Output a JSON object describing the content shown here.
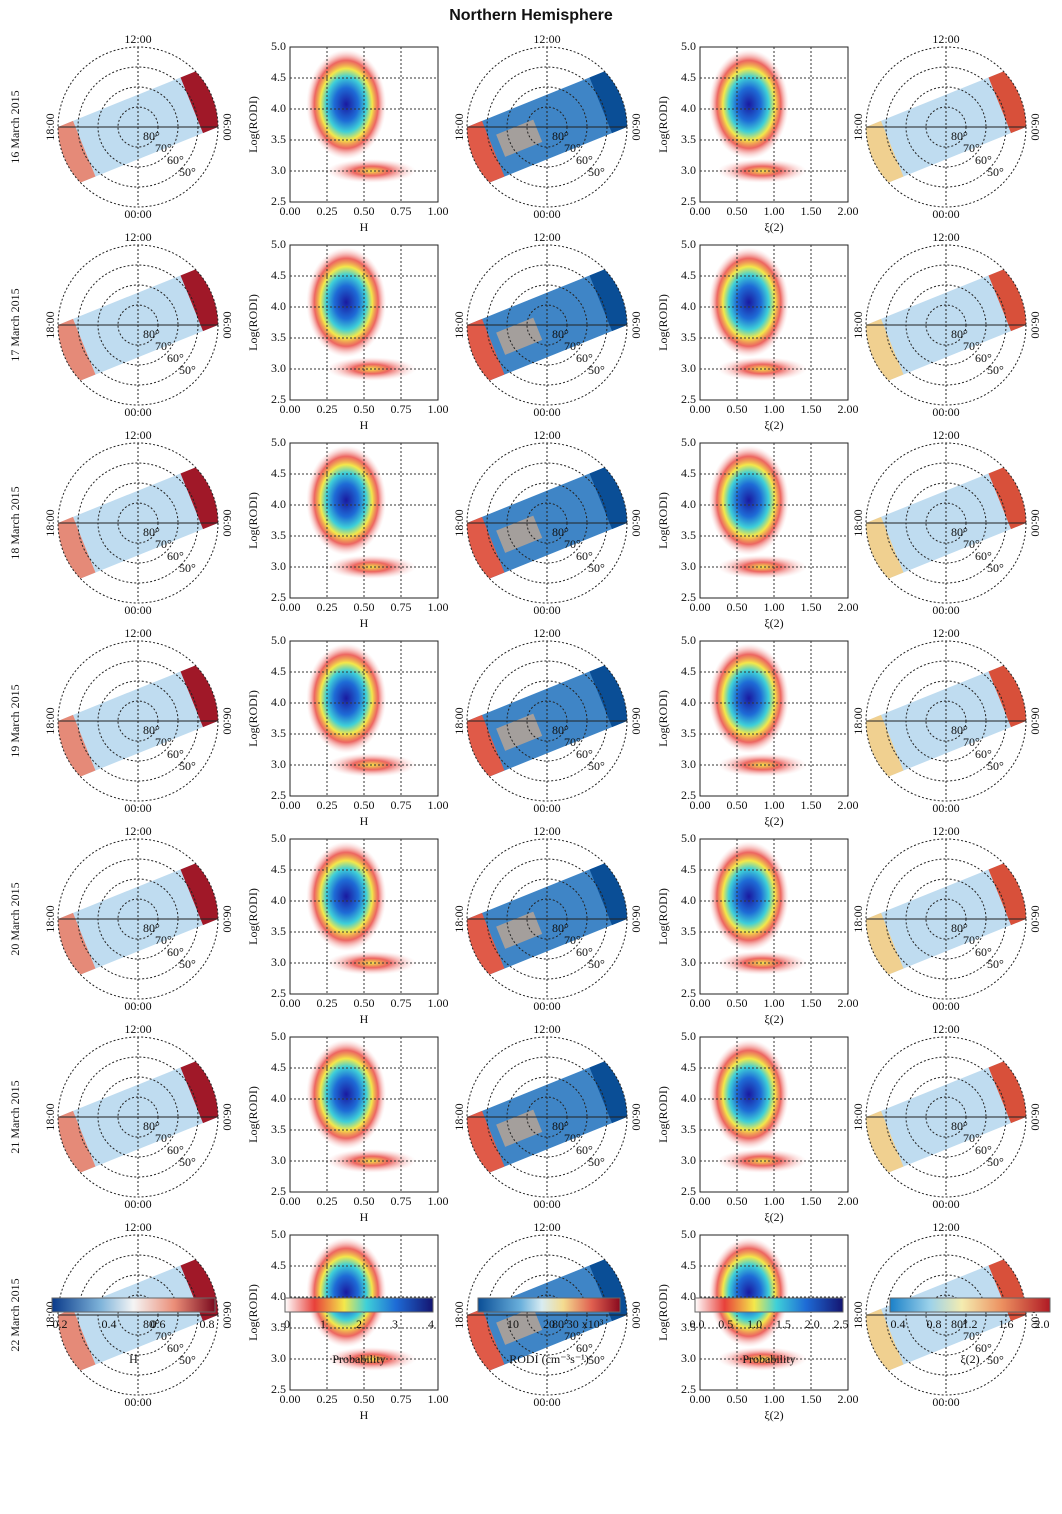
{
  "title": "Northern Hemisphere",
  "rows": [
    "16 March 2015",
    "17 March 2015",
    "18 March 2015",
    "19 March 2015",
    "20 March 2015",
    "21 March 2015",
    "22 March 2015"
  ],
  "polar_labels": {
    "top": "12:00",
    "bottom": "00:00",
    "left": "18:00",
    "right": "06:00",
    "rings": [
      "80°",
      "70°",
      "60°",
      "50°"
    ]
  },
  "hist_h": {
    "xticks": [
      "0.00",
      "0.25",
      "0.50",
      "0.75",
      "1.00"
    ],
    "xlabel": "H"
  },
  "hist_xi": {
    "xticks": [
      "0.00",
      "0.50",
      "1.00",
      "1.50",
      "2.00"
    ],
    "xlabel": "ξ(2)"
  },
  "hist_y": {
    "yticks": [
      "2.5",
      "3.0",
      "3.5",
      "4.0",
      "4.5",
      "5.0"
    ],
    "ylabel": "Log(RODI)"
  },
  "colorbars": [
    {
      "label": "H",
      "ticks": [
        "0.2",
        "0.4",
        "0.6",
        "0.8"
      ]
    },
    {
      "label": "Probability",
      "ticks": [
        "0",
        "1",
        "2",
        "3",
        "4"
      ]
    },
    {
      "label": "RODI (cm⁻³s⁻¹)",
      "ticks": [
        "10",
        "20",
        "30 x10³"
      ]
    },
    {
      "label": "Probability",
      "ticks": [
        "0.0",
        "0.5",
        "1.0",
        "1.5",
        "2.0",
        "2.5"
      ]
    },
    {
      "label": "ξ(2)",
      "ticks": [
        "0.4",
        "0.8",
        "1.2",
        "1.6",
        "2.0"
      ]
    }
  ]
}
